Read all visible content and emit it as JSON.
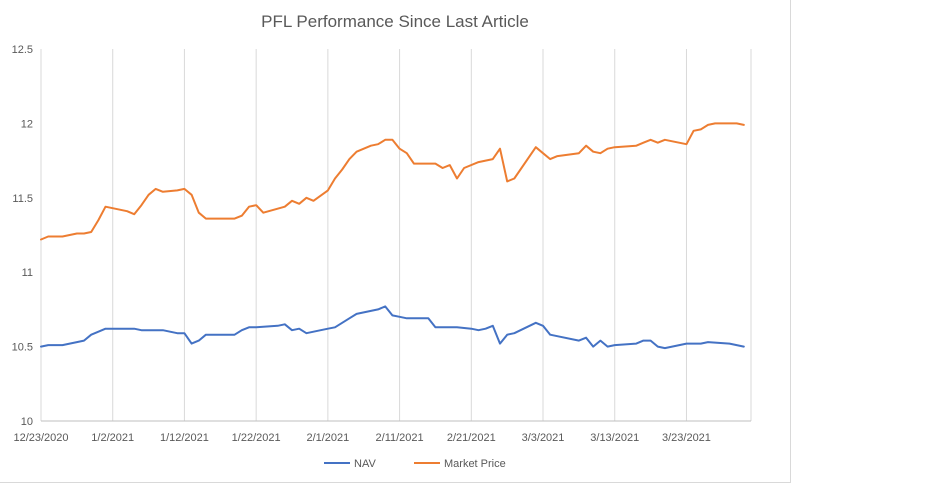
{
  "chart_data": {
    "type": "line",
    "title": "PFL Performance Since Last Article",
    "xlabel": "",
    "ylabel": "",
    "ylim": [
      10,
      12.5
    ],
    "yticks": [
      10,
      10.5,
      11,
      11.5,
      12,
      12.5
    ],
    "ytick_labels": [
      "10",
      "10.5",
      "11",
      "11.5",
      "12",
      "12.5"
    ],
    "xlim": [
      "2020-12-23",
      "2021-04-01"
    ],
    "xtick_labels": [
      "12/23/2020",
      "1/2/2021",
      "1/12/2021",
      "1/22/2021",
      "2/1/2021",
      "2/11/2021",
      "2/21/2021",
      "3/3/2021",
      "3/13/2021",
      "3/23/2021"
    ],
    "grid": "vertical",
    "legend": "bottom",
    "series": [
      {
        "name": "NAV",
        "color": "#4472c4",
        "points": [
          [
            "2020-12-23",
            10.5
          ],
          [
            "2020-12-24",
            10.51
          ],
          [
            "2020-12-26",
            10.51
          ],
          [
            "2020-12-28",
            10.53
          ],
          [
            "2020-12-29",
            10.54
          ],
          [
            "2020-12-30",
            10.58
          ],
          [
            "2020-12-31",
            10.6
          ],
          [
            "2021-01-01",
            10.62
          ],
          [
            "2021-01-02",
            10.62
          ],
          [
            "2021-01-04",
            10.62
          ],
          [
            "2021-01-05",
            10.62
          ],
          [
            "2021-01-06",
            10.61
          ],
          [
            "2021-01-08",
            10.61
          ],
          [
            "2021-01-09",
            10.61
          ],
          [
            "2021-01-11",
            10.59
          ],
          [
            "2021-01-12",
            10.59
          ],
          [
            "2021-01-13",
            10.52
          ],
          [
            "2021-01-14",
            10.54
          ],
          [
            "2021-01-15",
            10.58
          ],
          [
            "2021-01-18",
            10.58
          ],
          [
            "2021-01-19",
            10.58
          ],
          [
            "2021-01-20",
            10.61
          ],
          [
            "2021-01-21",
            10.63
          ],
          [
            "2021-01-22",
            10.63
          ],
          [
            "2021-01-25",
            10.64
          ],
          [
            "2021-01-26",
            10.65
          ],
          [
            "2021-01-27",
            10.61
          ],
          [
            "2021-01-28",
            10.62
          ],
          [
            "2021-01-29",
            10.59
          ],
          [
            "2021-01-30",
            10.6
          ],
          [
            "2021-02-01",
            10.62
          ],
          [
            "2021-02-02",
            10.63
          ],
          [
            "2021-02-03",
            10.66
          ],
          [
            "2021-02-04",
            10.69
          ],
          [
            "2021-02-05",
            10.72
          ],
          [
            "2021-02-07",
            10.74
          ],
          [
            "2021-02-08",
            10.75
          ],
          [
            "2021-02-09",
            10.77
          ],
          [
            "2021-02-10",
            10.71
          ],
          [
            "2021-02-11",
            10.7
          ],
          [
            "2021-02-12",
            10.69
          ],
          [
            "2021-02-15",
            10.69
          ],
          [
            "2021-02-16",
            10.63
          ],
          [
            "2021-02-17",
            10.63
          ],
          [
            "2021-02-18",
            10.63
          ],
          [
            "2021-02-19",
            10.63
          ],
          [
            "2021-02-21",
            10.62
          ],
          [
            "2021-02-22",
            10.61
          ],
          [
            "2021-02-23",
            10.62
          ],
          [
            "2021-02-24",
            10.64
          ],
          [
            "2021-02-25",
            10.52
          ],
          [
            "2021-02-26",
            10.58
          ],
          [
            "2021-02-27",
            10.59
          ],
          [
            "2021-03-02",
            10.66
          ],
          [
            "2021-03-03",
            10.64
          ],
          [
            "2021-03-04",
            10.58
          ],
          [
            "2021-03-05",
            10.57
          ],
          [
            "2021-03-08",
            10.54
          ],
          [
            "2021-03-09",
            10.56
          ],
          [
            "2021-03-10",
            10.5
          ],
          [
            "2021-03-11",
            10.54
          ],
          [
            "2021-03-12",
            10.5
          ],
          [
            "2021-03-13",
            10.51
          ],
          [
            "2021-03-16",
            10.52
          ],
          [
            "2021-03-17",
            10.54
          ],
          [
            "2021-03-18",
            10.54
          ],
          [
            "2021-03-19",
            10.5
          ],
          [
            "2021-03-20",
            10.49
          ],
          [
            "2021-03-22",
            10.51
          ],
          [
            "2021-03-23",
            10.52
          ],
          [
            "2021-03-24",
            10.52
          ],
          [
            "2021-03-25",
            10.52
          ],
          [
            "2021-03-26",
            10.53
          ],
          [
            "2021-03-29",
            10.52
          ],
          [
            "2021-03-30",
            10.51
          ],
          [
            "2021-03-31",
            10.5
          ]
        ]
      },
      {
        "name": "Market Price",
        "color": "#ed7d31",
        "points": [
          [
            "2020-12-23",
            11.22
          ],
          [
            "2020-12-24",
            11.24
          ],
          [
            "2020-12-26",
            11.24
          ],
          [
            "2020-12-28",
            11.26
          ],
          [
            "2020-12-29",
            11.26
          ],
          [
            "2020-12-30",
            11.27
          ],
          [
            "2020-12-31",
            11.35
          ],
          [
            "2021-01-01",
            11.44
          ],
          [
            "2021-01-02",
            11.43
          ],
          [
            "2021-01-04",
            11.41
          ],
          [
            "2021-01-05",
            11.39
          ],
          [
            "2021-01-06",
            11.45
          ],
          [
            "2021-01-07",
            11.52
          ],
          [
            "2021-01-08",
            11.56
          ],
          [
            "2021-01-09",
            11.54
          ],
          [
            "2021-01-11",
            11.55
          ],
          [
            "2021-01-12",
            11.56
          ],
          [
            "2021-01-13",
            11.52
          ],
          [
            "2021-01-14",
            11.4
          ],
          [
            "2021-01-15",
            11.36
          ],
          [
            "2021-01-18",
            11.36
          ],
          [
            "2021-01-19",
            11.36
          ],
          [
            "2021-01-20",
            11.38
          ],
          [
            "2021-01-21",
            11.44
          ],
          [
            "2021-01-22",
            11.45
          ],
          [
            "2021-01-23",
            11.4
          ],
          [
            "2021-01-26",
            11.44
          ],
          [
            "2021-01-27",
            11.48
          ],
          [
            "2021-01-28",
            11.46
          ],
          [
            "2021-01-29",
            11.5
          ],
          [
            "2021-01-30",
            11.48
          ],
          [
            "2021-02-01",
            11.55
          ],
          [
            "2021-02-02",
            11.63
          ],
          [
            "2021-02-03",
            11.69
          ],
          [
            "2021-02-04",
            11.76
          ],
          [
            "2021-02-05",
            11.81
          ],
          [
            "2021-02-07",
            11.85
          ],
          [
            "2021-02-08",
            11.86
          ],
          [
            "2021-02-09",
            11.89
          ],
          [
            "2021-02-10",
            11.89
          ],
          [
            "2021-02-11",
            11.83
          ],
          [
            "2021-02-12",
            11.8
          ],
          [
            "2021-02-13",
            11.73
          ],
          [
            "2021-02-16",
            11.73
          ],
          [
            "2021-02-17",
            11.7
          ],
          [
            "2021-02-18",
            11.72
          ],
          [
            "2021-02-19",
            11.63
          ],
          [
            "2021-02-20",
            11.7
          ],
          [
            "2021-02-22",
            11.74
          ],
          [
            "2021-02-23",
            11.75
          ],
          [
            "2021-02-24",
            11.76
          ],
          [
            "2021-02-25",
            11.83
          ],
          [
            "2021-02-26",
            11.61
          ],
          [
            "2021-02-27",
            11.63
          ],
          [
            "2021-03-02",
            11.84
          ],
          [
            "2021-03-03",
            11.8
          ],
          [
            "2021-03-04",
            11.76
          ],
          [
            "2021-03-05",
            11.78
          ],
          [
            "2021-03-08",
            11.8
          ],
          [
            "2021-03-09",
            11.85
          ],
          [
            "2021-03-10",
            11.81
          ],
          [
            "2021-03-11",
            11.8
          ],
          [
            "2021-03-12",
            11.83
          ],
          [
            "2021-03-13",
            11.84
          ],
          [
            "2021-03-16",
            11.85
          ],
          [
            "2021-03-17",
            11.87
          ],
          [
            "2021-03-18",
            11.89
          ],
          [
            "2021-03-19",
            11.87
          ],
          [
            "2021-03-20",
            11.89
          ],
          [
            "2021-03-23",
            11.86
          ],
          [
            "2021-03-24",
            11.95
          ],
          [
            "2021-03-25",
            11.96
          ],
          [
            "2021-03-26",
            11.99
          ],
          [
            "2021-03-27",
            12.0
          ],
          [
            "2021-03-30",
            12.0
          ],
          [
            "2021-03-31",
            11.99
          ]
        ]
      }
    ]
  }
}
